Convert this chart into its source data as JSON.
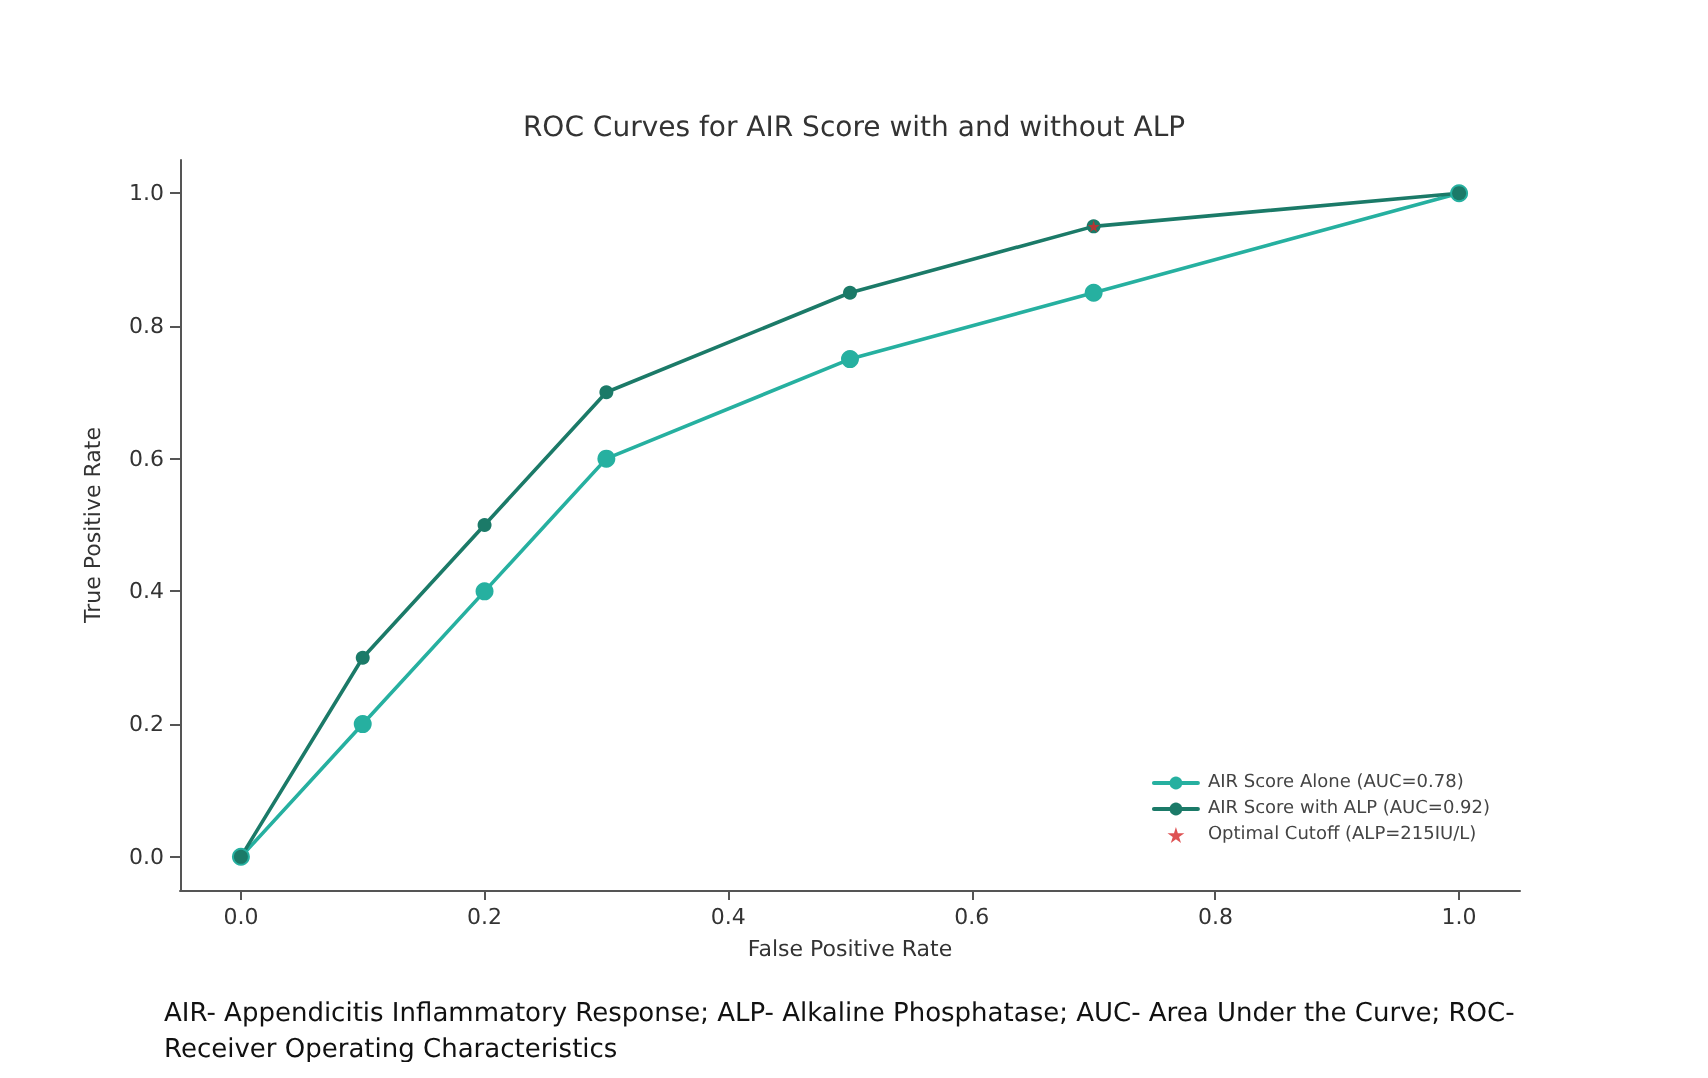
{
  "chart_data": {
    "type": "line",
    "title": "ROC Curves for AIR Score with and without ALP",
    "xlabel": "False Positive Rate",
    "ylabel": "True Positive Rate",
    "series": [
      {
        "name": "AIR Score Alone (AUC=0.78)",
        "color": "#26b0a0",
        "marker": "circle",
        "x": [
          0,
          0.1,
          0.2,
          0.3,
          0.5,
          0.7,
          1.0
        ],
        "values": [
          0,
          0.2,
          0.4,
          0.6,
          0.75,
          0.85,
          1.0
        ]
      },
      {
        "name": "AIR Score with ALP (AUC=0.92)",
        "color": "#1b7a68",
        "marker": "circle",
        "x": [
          0,
          0.1,
          0.2,
          0.3,
          0.5,
          0.7,
          1.0
        ],
        "values": [
          0,
          0.3,
          0.5,
          0.7,
          0.85,
          0.95,
          1.0
        ]
      },
      {
        "name": "Optimal Cutoff (ALP=215IU/L)",
        "type": "scatter",
        "marker": "star",
        "color": "#d62728",
        "x": [
          0.7
        ],
        "values": [
          0.95
        ]
      }
    ],
    "xlim": [
      -0.05,
      1.05
    ],
    "ylim": [
      -0.05,
      1.05
    ],
    "xticks": [
      {
        "value": 0,
        "label": "0.0"
      },
      {
        "value": 0.2,
        "label": "0.2"
      },
      {
        "value": 0.4,
        "label": "0.4"
      },
      {
        "value": 0.6,
        "label": "0.6"
      },
      {
        "value": 0.8,
        "label": "0.8"
      },
      {
        "value": 1,
        "label": "1.0"
      }
    ],
    "yticks": [
      {
        "value": 0,
        "label": "0.0"
      },
      {
        "value": 0.2,
        "label": "0.2"
      },
      {
        "value": 0.4,
        "label": "0.4"
      },
      {
        "value": 0.6,
        "label": "0.6"
      },
      {
        "value": 0.8,
        "label": "0.8"
      },
      {
        "value": 1,
        "label": "1.0"
      }
    ],
    "grid": false,
    "legend": "bottom right",
    "line_style": "solid",
    "annotations": [
      "AIR- Appendicitis Inflammatory Response; ALP- Alkaline Phosphatase; AUC- Area Under the Curve; ROC- Receiver Operating Characteristics"
    ]
  }
}
